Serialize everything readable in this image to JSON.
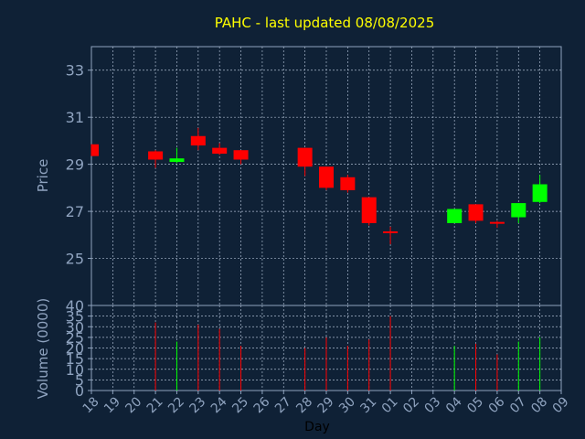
{
  "chart_data": {
    "type": "candlestick",
    "title": "PAHC - last updated 08/08/2025",
    "price_panel": {
      "ylabel": "Price",
      "ylim": [
        23,
        34
      ],
      "yticks": [
        25,
        27,
        29,
        31,
        33
      ],
      "grid": true
    },
    "volume_panel": {
      "ylabel": "Volume (0000)",
      "ylim": [
        0,
        40
      ],
      "yticks": [
        0,
        5,
        10,
        15,
        20,
        25,
        30,
        35,
        40
      ],
      "grid": true
    },
    "xlabel": "Day",
    "x_ticks": [
      "18",
      "19",
      "20",
      "21",
      "22",
      "23",
      "24",
      "25",
      "26",
      "27",
      "28",
      "29",
      "30",
      "31",
      "01",
      "02",
      "03",
      "04",
      "05",
      "06",
      "07",
      "08",
      "09"
    ],
    "candles": [
      {
        "day": "18",
        "open": 29.85,
        "close": 29.35,
        "high": 29.85,
        "low": 29.35,
        "volume": 0
      },
      {
        "day": "21",
        "open": 29.55,
        "close": 29.2,
        "high": 29.6,
        "low": 28.85,
        "volume": 32
      },
      {
        "day": "22",
        "open": 29.1,
        "close": 29.25,
        "high": 29.7,
        "low": 29.05,
        "volume": 23
      },
      {
        "day": "23",
        "open": 30.2,
        "close": 29.8,
        "high": 30.55,
        "low": 29.6,
        "volume": 31
      },
      {
        "day": "24",
        "open": 29.7,
        "close": 29.45,
        "high": 29.9,
        "low": 29.4,
        "volume": 29
      },
      {
        "day": "25",
        "open": 29.6,
        "close": 29.2,
        "high": 29.6,
        "low": 29.0,
        "volume": 21
      },
      {
        "day": "28",
        "open": 29.7,
        "close": 28.9,
        "high": 29.7,
        "low": 28.5,
        "volume": 20
      },
      {
        "day": "29",
        "open": 28.9,
        "close": 28.0,
        "high": 28.9,
        "low": 27.9,
        "volume": 25
      },
      {
        "day": "30",
        "open": 28.45,
        "close": 27.9,
        "high": 28.55,
        "low": 27.8,
        "volume": 21
      },
      {
        "day": "31",
        "open": 27.6,
        "close": 26.5,
        "high": 27.6,
        "low": 26.4,
        "volume": 24
      },
      {
        "day": "01",
        "open": 26.15,
        "close": 26.1,
        "high": 26.35,
        "low": 25.6,
        "volume": 35
      },
      {
        "day": "04",
        "open": 26.5,
        "close": 27.1,
        "high": 27.1,
        "low": 26.5,
        "volume": 21
      },
      {
        "day": "05",
        "open": 27.3,
        "close": 26.6,
        "high": 27.3,
        "low": 26.5,
        "volume": 22
      },
      {
        "day": "06",
        "open": 26.55,
        "close": 26.5,
        "high": 26.6,
        "low": 26.3,
        "volume": 17
      },
      {
        "day": "07",
        "open": 26.75,
        "close": 27.35,
        "high": 27.35,
        "low": 26.5,
        "volume": 23
      },
      {
        "day": "08",
        "open": 27.4,
        "close": 28.15,
        "high": 28.55,
        "low": 27.35,
        "volume": 25
      }
    ],
    "colors": {
      "background": "#0f2136",
      "up": "#00ff00",
      "down": "#ff0000",
      "axis": "#8fa3bf",
      "grid": "#a9b8cc",
      "title": "#ffff00"
    }
  }
}
